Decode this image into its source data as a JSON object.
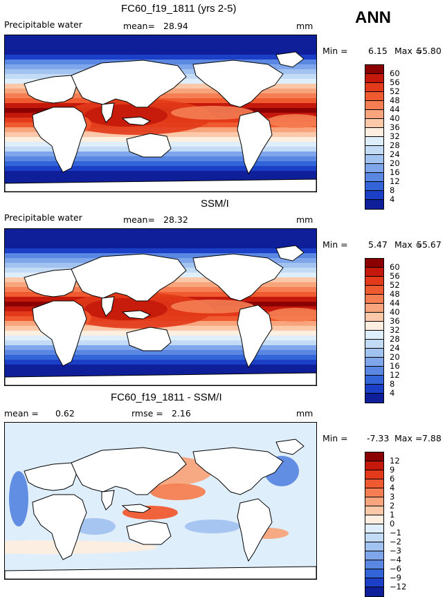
{
  "season": "ANN",
  "chart_data": [
    {
      "type": "heatmap",
      "title": "FC60_f19_1811 (yrs 2-5)",
      "variable": "Precipitable water",
      "mean_label": "mean=",
      "mean": "28.94",
      "units": "mm",
      "min_label": "Min =",
      "min": "6.15",
      "max_label": "Max =",
      "max": "55.80",
      "levels": [
        "60",
        "56",
        "52",
        "48",
        "44",
        "40",
        "36",
        "32",
        "28",
        "24",
        "20",
        "16",
        "12",
        "8",
        "4"
      ],
      "colors": [
        "#8b0000",
        "#c4180a",
        "#e23a1a",
        "#ef5a30",
        "#f57e52",
        "#f8a47c",
        "#fbc9aa",
        "#fdeee0",
        "#dfeefb",
        "#c4dbf6",
        "#a2c2f0",
        "#7fa6ea",
        "#5a87e2",
        "#3465d8",
        "#1b3fc6",
        "#0f1f9a"
      ],
      "palette": "warm"
    },
    {
      "type": "heatmap",
      "title": "SSM/I",
      "variable": "Precipitable water",
      "mean_label": "mean=",
      "mean": "28.32",
      "units": "mm",
      "min_label": "Min =",
      "min": "5.47",
      "max_label": "Max =",
      "max": "55.67",
      "levels": [
        "60",
        "56",
        "52",
        "48",
        "44",
        "40",
        "36",
        "32",
        "28",
        "24",
        "20",
        "16",
        "12",
        "8",
        "4"
      ],
      "colors": [
        "#8b0000",
        "#c4180a",
        "#e23a1a",
        "#ef5a30",
        "#f57e52",
        "#f8a47c",
        "#fbc9aa",
        "#fdeee0",
        "#dfeefb",
        "#c4dbf6",
        "#a2c2f0",
        "#7fa6ea",
        "#5a87e2",
        "#3465d8",
        "#1b3fc6",
        "#0f1f9a"
      ],
      "palette": "warm"
    },
    {
      "type": "heatmap",
      "title": "FC60_f19_1811 - SSM/I",
      "left_label": "mean =",
      "mean": "0.62",
      "rmse_label": "rmse =",
      "rmse": "2.16",
      "units": "mm",
      "min_label": "Min =",
      "min": "-7.33",
      "max_label": "Max =",
      "max": "7.88",
      "levels": [
        "12",
        "9",
        "6",
        "4",
        "3",
        "2",
        "1",
        "0",
        "−1",
        "−2",
        "−3",
        "−4",
        "−6",
        "−9",
        "−12"
      ],
      "colors": [
        "#8b0000",
        "#c4180a",
        "#e23a1a",
        "#ef5a30",
        "#f57e52",
        "#f8a47c",
        "#fbc9aa",
        "#fdeee0",
        "#dfeefb",
        "#c4dbf6",
        "#a2c2f0",
        "#7fa6ea",
        "#5a87e2",
        "#3465d8",
        "#1b3fc6",
        "#0f1f9a"
      ],
      "palette": "diff"
    }
  ]
}
